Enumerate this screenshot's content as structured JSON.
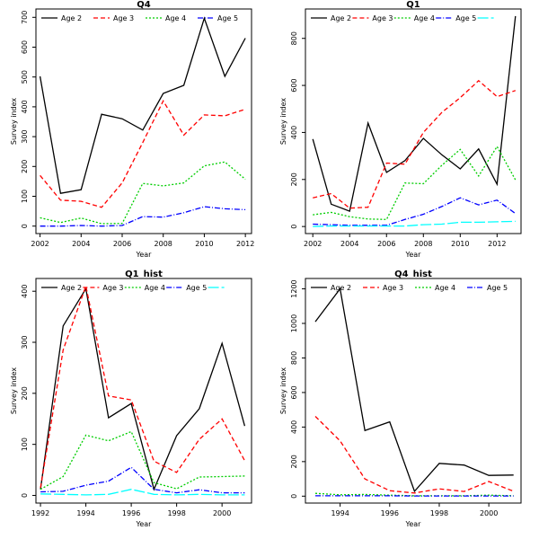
{
  "chart_data": [
    {
      "type": "line",
      "title": "Q4",
      "xlabel": "Year",
      "ylabel": "Survey index",
      "x": [
        2002,
        2003,
        2004,
        2005,
        2006,
        2007,
        2008,
        2009,
        2010,
        2011,
        2012
      ],
      "xticks": [
        2002,
        2004,
        2006,
        2008,
        2010,
        2012
      ],
      "yticks": [
        0,
        100,
        200,
        300,
        400,
        500,
        600,
        700
      ],
      "xlim": [
        2001.8,
        2012.3
      ],
      "ylim": [
        -25,
        728
      ],
      "legend_position": "top",
      "series": [
        {
          "name": "Age 2",
          "color": "#000000",
          "values": [
            502,
            110,
            122,
            375,
            360,
            322,
            445,
            472,
            697,
            502,
            630
          ]
        },
        {
          "name": "Age 3",
          "color": "#ff0000",
          "values": [
            170,
            87,
            83,
            63,
            145,
            280,
            420,
            305,
            373,
            370,
            392
          ]
        },
        {
          "name": "Age 4",
          "color": "#00cd00",
          "values": [
            28,
            12,
            27,
            8,
            9,
            143,
            135,
            145,
            202,
            215,
            157
          ]
        },
        {
          "name": "Age 5",
          "color": "#0000ff",
          "values": [
            0,
            0,
            2,
            0,
            2,
            32,
            30,
            45,
            65,
            58,
            55
          ]
        }
      ]
    },
    {
      "type": "line",
      "title": "Q1",
      "xlabel": "Year",
      "ylabel": "Survey index",
      "x": [
        2002,
        2003,
        2004,
        2005,
        2006,
        2007,
        2008,
        2009,
        2010,
        2011,
        2012,
        2013
      ],
      "xticks": [
        2002,
        2004,
        2006,
        2008,
        2010,
        2012
      ],
      "yticks": [
        0,
        200,
        400,
        600,
        800
      ],
      "xlim": [
        2001.6,
        2013.3
      ],
      "ylim": [
        -30,
        925
      ],
      "legend_position": "top",
      "series": [
        {
          "name": "Age 2",
          "color": "#000000",
          "values": [
            372,
            95,
            65,
            440,
            230,
            280,
            375,
            305,
            245,
            330,
            180,
            895
          ]
        },
        {
          "name": "Age 3",
          "color": "#ff0000",
          "values": [
            122,
            140,
            78,
            82,
            270,
            265,
            400,
            485,
            548,
            620,
            552,
            578
          ]
        },
        {
          "name": "Age 4",
          "color": "#00cd00",
          "values": [
            50,
            60,
            42,
            32,
            30,
            185,
            182,
            260,
            328,
            215,
            340,
            198
          ]
        },
        {
          "name": "Age 5",
          "color": "#0000ff",
          "values": [
            10,
            8,
            5,
            5,
            5,
            30,
            52,
            85,
            122,
            92,
            112,
            55
          ]
        },
        {
          "name": "",
          "color": "#00ffff",
          "values": [
            0,
            2,
            2,
            2,
            2,
            2,
            8,
            10,
            18,
            18,
            20,
            22
          ]
        }
      ]
    },
    {
      "type": "line",
      "title": "Q1_hist",
      "xlabel": "Year",
      "ylabel": "Survey index",
      "x": [
        1992,
        1993,
        1994,
        1995,
        1996,
        1997,
        1998,
        1999,
        2000,
        2001
      ],
      "xticks": [
        1992,
        1994,
        1996,
        1998,
        2000
      ],
      "yticks": [
        0,
        100,
        200,
        300,
        400
      ],
      "xlim": [
        1991.8,
        2001.3
      ],
      "ylim": [
        -15,
        425
      ],
      "legend_position": "top",
      "series": [
        {
          "name": "Age 2",
          "color": "#000000",
          "values": [
            12,
            332,
            405,
            152,
            180,
            12,
            117,
            170,
            298,
            136
          ]
        },
        {
          "name": "Age 3",
          "color": "#ff0000",
          "values": [
            15,
            285,
            410,
            195,
            187,
            67,
            45,
            110,
            150,
            68
          ]
        },
        {
          "name": "Age 4",
          "color": "#00cd00",
          "values": [
            12,
            37,
            118,
            107,
            125,
            25,
            13,
            36,
            37,
            38
          ]
        },
        {
          "name": "Age 5",
          "color": "#0000ff",
          "values": [
            7,
            8,
            20,
            28,
            55,
            12,
            5,
            11,
            5,
            5
          ]
        },
        {
          "name": "",
          "color": "#00ffff",
          "values": [
            3,
            2,
            1,
            2,
            12,
            2,
            1,
            2,
            1,
            1
          ]
        }
      ]
    },
    {
      "type": "line",
      "title": "Q4_hist",
      "xlabel": "Year",
      "ylabel": "Survey index",
      "x": [
        1993,
        1994,
        1995,
        1996,
        1997,
        1998,
        1999,
        2000,
        2001
      ],
      "xticks": [
        1994,
        1996,
        1998,
        2000
      ],
      "yticks": [
        0,
        200,
        400,
        600,
        800,
        1000,
        1200
      ],
      "xlim": [
        1992.6,
        2001.3
      ],
      "ylim": [
        -40,
        1260
      ],
      "legend_position": "top",
      "series": [
        {
          "name": "Age 2",
          "color": "#000000",
          "values": [
            1010,
            1200,
            380,
            430,
            28,
            190,
            180,
            120,
            122
          ]
        },
        {
          "name": "Age 3",
          "color": "#ff0000",
          "values": [
            462,
            320,
            100,
            32,
            18,
            42,
            27,
            85,
            28
          ]
        },
        {
          "name": "Age 4",
          "color": "#00cd00",
          "values": [
            16,
            8,
            10,
            6,
            2,
            2,
            2,
            6,
            2
          ]
        },
        {
          "name": "Age 5",
          "color": "#0000ff",
          "values": [
            2,
            2,
            2,
            2,
            1,
            1,
            1,
            1,
            1
          ]
        }
      ]
    }
  ]
}
